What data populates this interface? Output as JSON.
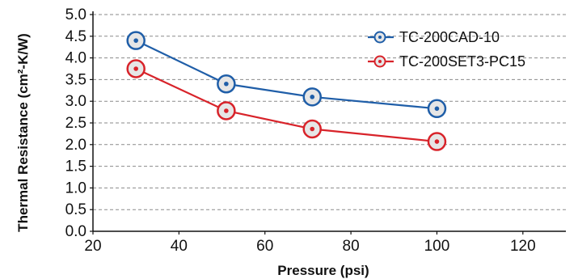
{
  "chart_data": {
    "type": "line",
    "title": "",
    "xlabel": "Pressure (psi)",
    "ylabel": "Thermal Resistance (cm²-K/W)",
    "xlim": [
      20,
      130
    ],
    "ylim": [
      0,
      5.0
    ],
    "xticks": [
      20,
      40,
      60,
      80,
      100,
      120
    ],
    "yticks": [
      0.0,
      0.5,
      1.0,
      1.5,
      2.0,
      2.5,
      3.0,
      3.5,
      4.0,
      4.5,
      5.0
    ],
    "xtick_labels": [
      "20",
      "40",
      "60",
      "80",
      "100",
      "120"
    ],
    "ytick_labels": [
      "0.0",
      "0.5",
      "1.0",
      "1.5",
      "2.0",
      "2.5",
      "3.0",
      "3.5",
      "4.0",
      "4.5",
      "5.0"
    ],
    "grid": "horizontal-dashed",
    "legend_position": "top-right",
    "series": [
      {
        "name": "TC-200CAD-10",
        "color": "#1f5ea8",
        "x": [
          30,
          51,
          71,
          100
        ],
        "y": [
          4.4,
          3.4,
          3.1,
          2.83
        ]
      },
      {
        "name": "TC-200SET3-PC15",
        "color": "#d8232a",
        "x": [
          30,
          51,
          71,
          100
        ],
        "y": [
          3.75,
          2.78,
          2.36,
          2.07
        ]
      }
    ]
  }
}
